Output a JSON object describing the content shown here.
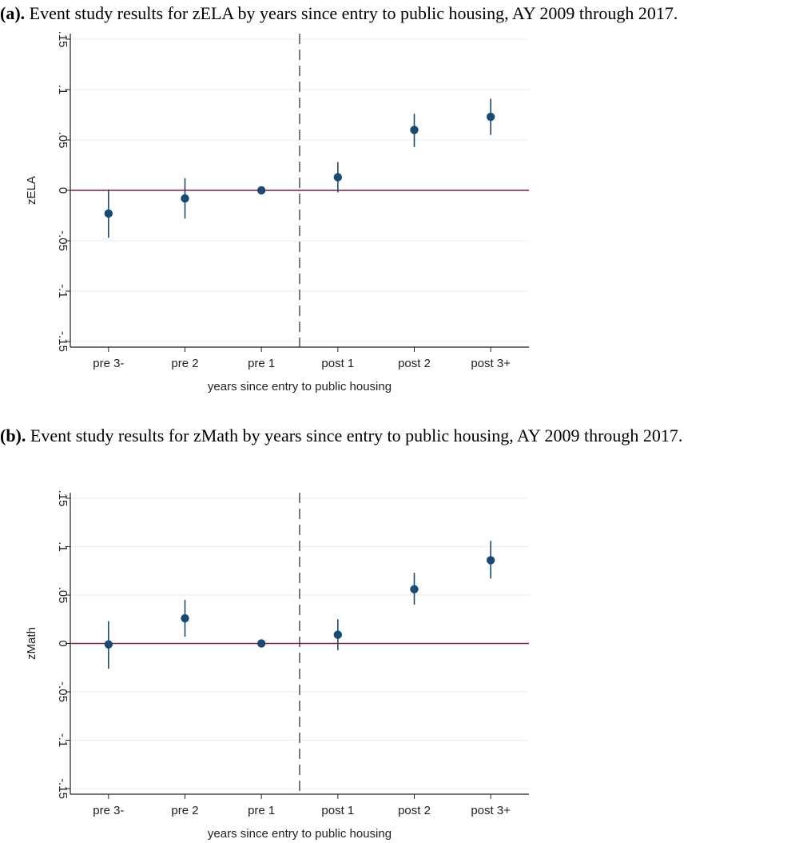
{
  "figure_a": {
    "caption_label": "(a).",
    "caption_text": " Event study results for zELA by years since entry to public housing, AY 2009 through 2017."
  },
  "figure_b": {
    "caption_label": "(b).",
    "caption_text": " Event study results for zMath by years since entry to public housing, AY 2009 through 2017."
  },
  "colors": {
    "point": "#1a4a72",
    "ci": "#1a4a72",
    "zero_line": "#8b1a3a",
    "grid": "#e8edf0",
    "axis": "#222222",
    "event_line": "#333333"
  },
  "chart_data": [
    {
      "type": "scatter",
      "title": "",
      "xlabel": "years since entry to public housing",
      "ylabel": "zELA",
      "categories": [
        "pre 3-",
        "pre 2",
        "pre 1",
        "post 1",
        "post 2",
        "post 3+"
      ],
      "ylim": [
        -0.15,
        0.15
      ],
      "yticks": [
        -0.15,
        -0.1,
        -0.05,
        0,
        0.05,
        0.1,
        0.15
      ],
      "ytick_labels": [
        "-.15",
        "-.1",
        "-.05",
        "0",
        ".05",
        ".1",
        ".15"
      ],
      "values": [
        -0.023,
        -0.008,
        0.0,
        0.013,
        0.06,
        0.073
      ],
      "ci_low": [
        -0.047,
        -0.028,
        0.0,
        -0.002,
        0.043,
        0.055
      ],
      "ci_high": [
        0.001,
        0.012,
        0.0,
        0.028,
        0.076,
        0.091
      ],
      "event_line_between": [
        "pre 1",
        "post 1"
      ],
      "reference_line_y": 0,
      "grid": true
    },
    {
      "type": "scatter",
      "title": "",
      "xlabel": "years since entry to public housing",
      "ylabel": "zMath",
      "categories": [
        "pre 3-",
        "pre 2",
        "pre 1",
        "post 1",
        "post 2",
        "post 3+"
      ],
      "ylim": [
        -0.15,
        0.15
      ],
      "yticks": [
        -0.15,
        -0.1,
        -0.05,
        0,
        0.05,
        0.1,
        0.15
      ],
      "ytick_labels": [
        "-.15",
        "-.1",
        "-.05",
        "0",
        ".05",
        ".1",
        ".15"
      ],
      "values": [
        -0.001,
        0.026,
        0.0,
        0.009,
        0.056,
        0.086
      ],
      "ci_low": [
        -0.026,
        0.007,
        0.0,
        -0.007,
        0.04,
        0.067
      ],
      "ci_high": [
        0.023,
        0.045,
        0.0,
        0.025,
        0.073,
        0.106
      ],
      "event_line_between": [
        "pre 1",
        "post 1"
      ],
      "reference_line_y": 0,
      "grid": true
    }
  ]
}
